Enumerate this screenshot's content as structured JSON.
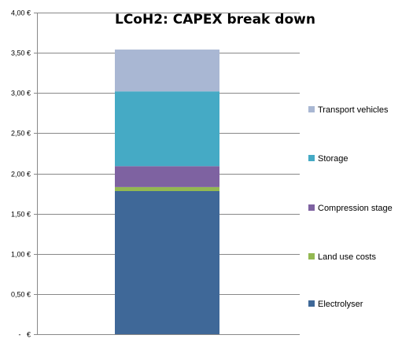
{
  "chart_data": {
    "type": "bar",
    "stacked": true,
    "title": "LCoH2: CAPEX break down",
    "xlabel": "",
    "ylabel": "",
    "ylim": [
      0,
      4.0
    ],
    "y_ticks": [
      {
        "value": 0,
        "label": "-   €"
      },
      {
        "value": 0.5,
        "label": "0,50 €"
      },
      {
        "value": 1.0,
        "label": "1,00 €"
      },
      {
        "value": 1.5,
        "label": "1,50 €"
      },
      {
        "value": 2.0,
        "label": "2,00 €"
      },
      {
        "value": 2.5,
        "label": "2,50 €"
      },
      {
        "value": 3.0,
        "label": "3,00 €"
      },
      {
        "value": 3.5,
        "label": "3,50 €"
      },
      {
        "value": 4.0,
        "label": "4,00 €"
      }
    ],
    "grid": true,
    "legend_position": "right",
    "series": [
      {
        "name": "Electrolyser",
        "value": 1.78,
        "color": "#3F6898"
      },
      {
        "name": "Land use costs",
        "value": 0.05,
        "color": "#93B852"
      },
      {
        "name": "Compression stage",
        "value": 0.26,
        "color": "#7E62A1"
      },
      {
        "name": "Storage",
        "value": 0.93,
        "color": "#45AAC5"
      },
      {
        "name": "Transport vehicles",
        "value": 0.52,
        "color": "#A9B7D3"
      }
    ],
    "legend_order": [
      "Transport vehicles",
      "Storage",
      "Compression stage",
      "Land use costs",
      "Electrolyser"
    ]
  }
}
